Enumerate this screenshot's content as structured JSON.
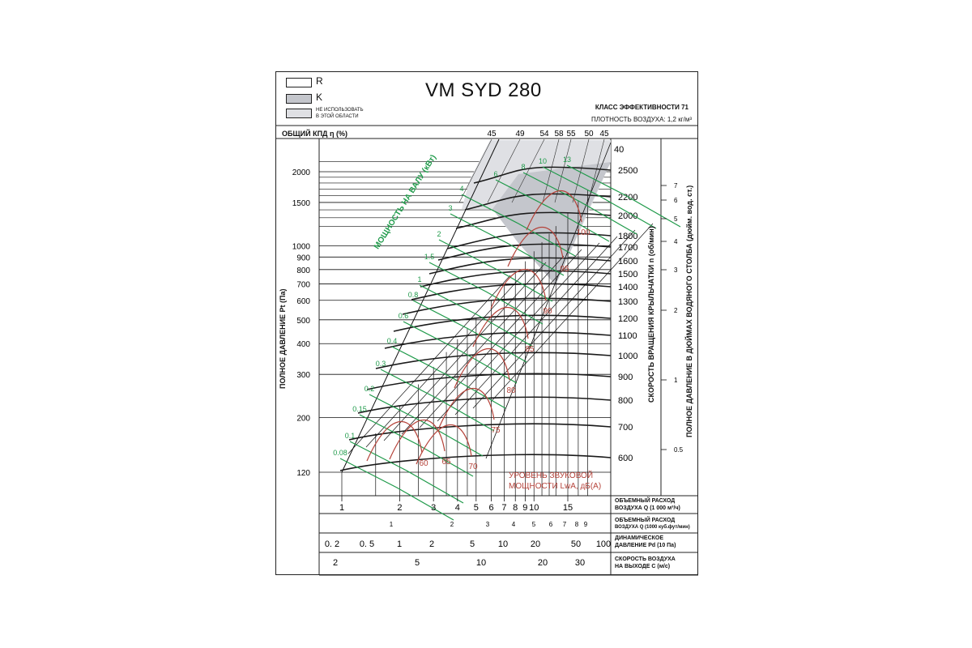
{
  "title": "VM SYD 280",
  "efficiency_class": "КЛАСС ЭФФЕКТИВНОСТИ 71",
  "air_density": "ПЛОТНОСТЬ ВОЗДУХА: 1,2 кг/м³",
  "legend": {
    "r_label": "R",
    "k_label": "K",
    "not_use_line1": "НЕ ИСПОЛЬЗОВАТЬ",
    "not_use_line2": "В ЭТОЙ ОБЛАСТИ"
  },
  "kpd_label": "ОБЩИЙ КПД η (%)",
  "labels": {
    "left_axis": "ПОЛНОЕ ДАВЛЕНИЕ Pt (Па)",
    "rpm_axis": "СКОРОСТЬ ВРАЩЕНИЯ КРЫЛЬЧАТКИ  n (об/мин)",
    "inch_axis": "ПОЛНОЕ ДАВЛЕНИЕ В ДЮЙМАХ ВОДЯНОГО СТОЛБА (дюйм. вод. ст.)",
    "power": "МОЩНОСТЬ НА ВАЛУ (кВт)",
    "noise_line1": "УРОВЕНЬ ЗВУКОВОЙ",
    "noise_line2": "МОЩНОСТИ LwA, дБ(А)",
    "scale1_l1": "ОБЪЕМНЫЙ РАСХОД",
    "scale1_l2": "ВОЗДУХА Q (1 000 м³/ч)",
    "scale2_l1": "ОБЪЕМНЫЙ РАСХОД",
    "scale2_l2": "ВОЗДУХА Q (1000 куб.фут/мин)",
    "scale3_l1": "ДИНАМИЧЕСКОЕ",
    "scale3_l2": "ДАВЛЕНИЕ Pd (10 Па)",
    "scale4_l1": "СКОРОСТЬ ВОЗДУХА",
    "scale4_l2": "НА ВЫХОДЕ C (м/с)"
  },
  "colors": {
    "fan_curve": "#1a1a1a",
    "power_line": "#1f9a4a",
    "noise_line": "#b5433a",
    "shade_k": "#c4c6cc",
    "shade_noarea": "#dfe0e4",
    "frame": "#222222"
  },
  "chart_data": {
    "type": "line",
    "title": "VM SYD 280",
    "pressure_ticks": [
      "120",
      "200",
      "300",
      "400",
      "500",
      "600",
      "700",
      "800",
      "900",
      "1000",
      "1500",
      "2000"
    ],
    "pressure_values": [
      120,
      200,
      300,
      400,
      500,
      600,
      700,
      800,
      900,
      1000,
      1500,
      2000
    ],
    "rpm_ticks": [
      "600",
      "700",
      "800",
      "900",
      "1000",
      "1100",
      "1200",
      "1300",
      "1400",
      "1500",
      "1600",
      "1700",
      "1800",
      "2000",
      "2200",
      "2500"
    ],
    "rpm_top": "40",
    "inch_ticks": [
      "0.5",
      "1",
      "2",
      "3",
      "4",
      "5",
      "6",
      "7"
    ],
    "inch_values": [
      0.5,
      1,
      2,
      3,
      4,
      5,
      6,
      7
    ],
    "efficiency_ticks": [
      "45",
      "49",
      "54",
      "58",
      "55",
      "50",
      "45"
    ],
    "power_labels": [
      "0.08",
      "0.1",
      "0.15",
      "0.2",
      "0.3",
      "0.4",
      "0.6",
      "0.8",
      "1",
      "1.5",
      "2",
      "3",
      "4",
      "6",
      "8",
      "10",
      "13"
    ],
    "noise_labels": [
      "60",
      "65",
      "70",
      "75",
      "80",
      "85",
      "90",
      "95",
      "100"
    ],
    "q_m3h_ticks": [
      "1",
      "2",
      "3",
      "4",
      "5",
      "6",
      "7",
      "8",
      "9",
      "10",
      "15"
    ],
    "q_m3h_values": [
      1,
      2,
      3,
      4,
      5,
      6,
      7,
      8,
      9,
      10,
      15
    ],
    "q_cfm_ticks": [
      "1",
      "2",
      "3",
      "4",
      "5",
      "6",
      "7",
      "8",
      "9"
    ],
    "pd_ticks": [
      "0. 2",
      "0. 5",
      "1",
      "2",
      "5",
      "10",
      "20",
      "50",
      "100"
    ],
    "velocity_ticks": [
      "2",
      "5",
      "10",
      "20",
      "30"
    ],
    "xlim": [
      0.8,
      20
    ],
    "ylim": [
      100,
      2400
    ],
    "xscale": "log",
    "yscale": "log"
  }
}
